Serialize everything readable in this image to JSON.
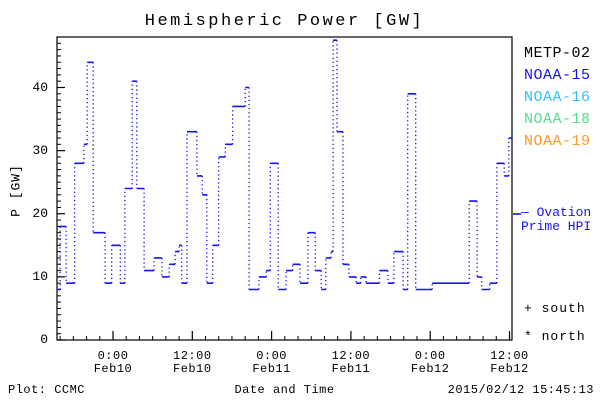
{
  "title": "Hemispheric Power [GW]",
  "axes": {
    "ylabel": "P [GW]",
    "xlabel": "Date and Time",
    "ylim": [
      0,
      48
    ],
    "yticks": [
      0,
      10,
      20,
      30,
      40
    ],
    "y_minor_step": 1,
    "xlim_hours": [
      -8.5,
      60.4
    ],
    "x_minor_step_hours": 2,
    "xticks": [
      {
        "hour": 0,
        "time": "0:00",
        "date": "Feb10"
      },
      {
        "hour": 12,
        "time": "12:00",
        "date": "Feb10"
      },
      {
        "hour": 24,
        "time": "0:00",
        "date": "Feb11"
      },
      {
        "hour": 36,
        "time": "12:00",
        "date": "Feb11"
      },
      {
        "hour": 48,
        "time": "0:00",
        "date": "Feb12"
      },
      {
        "hour": 60,
        "time": "12:00",
        "date": "Feb12"
      }
    ]
  },
  "legend": {
    "satellites": [
      {
        "label": "METP-02",
        "color": "#000000"
      },
      {
        "label": "NOAA-15",
        "color": "#1414f0"
      },
      {
        "label": "NOAA-16",
        "color": "#33bfff"
      },
      {
        "label": "NOAA-18",
        "color": "#55dd88"
      },
      {
        "label": "NOAA-19",
        "color": "#ff9922"
      }
    ],
    "model": {
      "line1": "— Ovation",
      "line2": "Prime HPI",
      "color": "#1414f0"
    },
    "symbols": [
      {
        "symbol": "+",
        "label": "south"
      },
      {
        "symbol": "*",
        "label": "north"
      }
    ]
  },
  "footer": {
    "credit": "Plot: CCMC",
    "timestamp": "2015/02/12 15:45:13"
  },
  "chart_data": {
    "type": "line",
    "subtype": "step-post",
    "line_style": "dotted verticals, solid plateaus",
    "title": "Hemispheric Power [GW]",
    "xlabel": "Date and Time",
    "ylabel": "P [GW]",
    "x_unit": "hours since 2015-02-10 00:00",
    "xlim": [
      -8.5,
      60.4
    ],
    "ylim": [
      0,
      48
    ],
    "grid": false,
    "legend_position": "right",
    "series": [
      {
        "name": "Ovation Prime HPI",
        "color": "#1414f0",
        "end_hour": 60.4,
        "points": [
          [
            -8.5,
            8
          ],
          [
            -8.0,
            18
          ],
          [
            -7.1,
            9
          ],
          [
            -5.8,
            28
          ],
          [
            -4.4,
            31
          ],
          [
            -3.9,
            44
          ],
          [
            -3.0,
            17
          ],
          [
            -1.2,
            9
          ],
          [
            -0.2,
            15
          ],
          [
            1.1,
            9
          ],
          [
            1.8,
            24
          ],
          [
            2.9,
            41
          ],
          [
            3.6,
            24
          ],
          [
            4.7,
            11
          ],
          [
            6.2,
            13
          ],
          [
            7.4,
            10
          ],
          [
            8.5,
            12
          ],
          [
            9.4,
            14
          ],
          [
            10.0,
            15
          ],
          [
            10.4,
            9
          ],
          [
            11.2,
            33
          ],
          [
            12.7,
            26
          ],
          [
            13.5,
            23
          ],
          [
            14.2,
            9
          ],
          [
            15.1,
            15
          ],
          [
            16.0,
            29
          ],
          [
            17.0,
            31
          ],
          [
            18.1,
            37
          ],
          [
            20.0,
            40
          ],
          [
            20.6,
            8
          ],
          [
            22.1,
            10
          ],
          [
            23.2,
            11
          ],
          [
            23.8,
            28
          ],
          [
            25.0,
            8
          ],
          [
            26.2,
            11
          ],
          [
            27.2,
            12
          ],
          [
            28.3,
            9
          ],
          [
            29.5,
            17
          ],
          [
            30.6,
            11
          ],
          [
            31.5,
            8
          ],
          [
            32.2,
            13
          ],
          [
            33.0,
            14
          ],
          [
            33.3,
            47.5
          ],
          [
            33.9,
            33
          ],
          [
            34.8,
            12
          ],
          [
            35.7,
            10
          ],
          [
            36.8,
            9
          ],
          [
            37.5,
            10
          ],
          [
            38.3,
            9
          ],
          [
            40.3,
            11
          ],
          [
            41.6,
            9
          ],
          [
            42.5,
            14
          ],
          [
            43.9,
            8
          ],
          [
            44.6,
            39
          ],
          [
            45.8,
            8
          ],
          [
            48.3,
            9
          ],
          [
            53.9,
            22
          ],
          [
            55.1,
            10
          ],
          [
            55.8,
            8
          ],
          [
            57.0,
            9
          ],
          [
            58.1,
            28
          ],
          [
            59.2,
            26
          ],
          [
            59.9,
            32
          ]
        ]
      }
    ]
  }
}
